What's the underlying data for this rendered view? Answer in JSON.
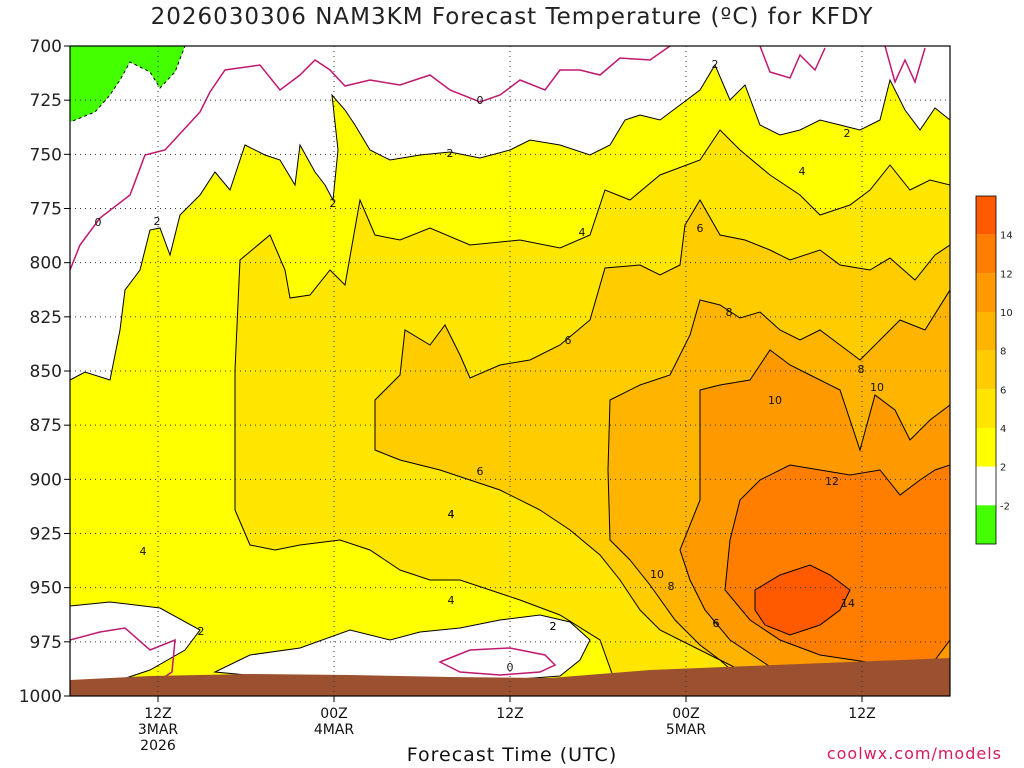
{
  "title": "2026030306 NAM3KM Forecast Temperature (ºC) for KFDY",
  "xlabel": "Forecast Time (UTC)",
  "credit": "coolwx.com/models",
  "chart_data": {
    "type": "heatmap",
    "title": "2026030306 NAM3KM Forecast Temperature (ºC) for KFDY",
    "xlabel": "Forecast Time (UTC)",
    "ylabel": "",
    "yscale": "pressure (inverted)",
    "ylim": [
      1000,
      700
    ],
    "y_ticks": [
      700,
      725,
      750,
      775,
      800,
      825,
      850,
      875,
      900,
      925,
      950,
      975,
      1000
    ],
    "x_ticks": [
      {
        "hour": 6,
        "lines": [
          "12Z",
          "3MAR",
          "2026"
        ]
      },
      {
        "hour": 18,
        "lines": [
          "00Z",
          "4MAR"
        ]
      },
      {
        "hour": 30,
        "lines": [
          "12Z"
        ]
      },
      {
        "hour": 42,
        "lines": [
          "00Z",
          "5MAR"
        ]
      },
      {
        "hour": 54,
        "lines": [
          "12Z"
        ]
      }
    ],
    "xlim_hours": [
      0,
      60
    ],
    "grid": true,
    "colorbar": {
      "levels": [
        -2,
        2,
        4,
        6,
        8,
        10,
        12,
        14
      ],
      "colors": [
        "#44ff00",
        "#ffffff",
        "#ffff00",
        "#ffe600",
        "#ffcc00",
        "#ffb400",
        "#ff9900",
        "#ff7e00",
        "#ff5a00"
      ],
      "tick_labels": [
        "-2",
        "2",
        "4",
        "6",
        "8",
        "10",
        "12",
        "14"
      ]
    },
    "contour_labels": [
      "0",
      "2",
      "2",
      "2",
      "0",
      "2",
      "4",
      "6",
      "4",
      "2",
      "6",
      "6",
      "8",
      "8",
      "10",
      "10",
      "4",
      "4",
      "4",
      "6",
      "2",
      "2",
      "0",
      "10",
      "8",
      "6",
      "12",
      "14",
      "4",
      "2"
    ],
    "freezing_contour": 0
  }
}
